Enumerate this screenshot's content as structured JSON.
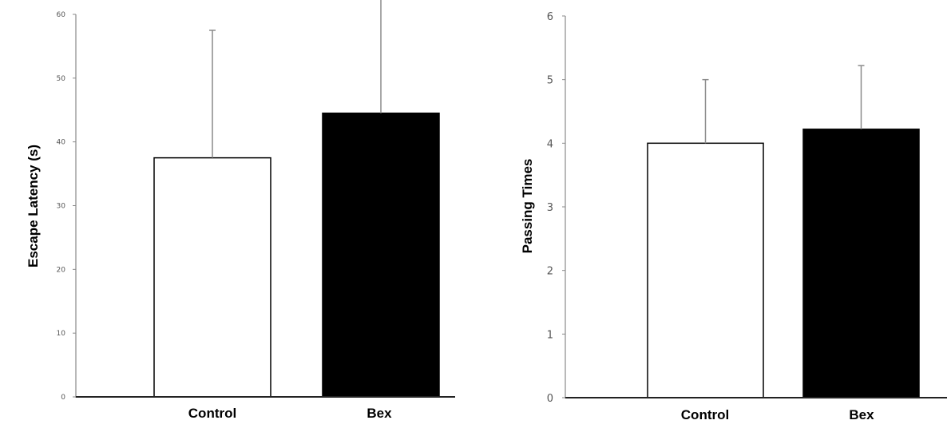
{
  "chart_data": [
    {
      "type": "bar",
      "categories": [
        "Control",
        "Bex"
      ],
      "values": [
        37.5,
        44.5
      ],
      "errors": [
        20,
        20
      ],
      "ylabel": "Escape Latency (s)",
      "ylim": [
        0,
        60
      ],
      "yticks": [
        0,
        10,
        20,
        30,
        40,
        50,
        60
      ],
      "bar_colors": [
        "#ffffff",
        "#000000"
      ],
      "grid": false
    },
    {
      "type": "bar",
      "categories": [
        "Control",
        "Bex"
      ],
      "values": [
        4.0,
        4.22
      ],
      "errors": [
        1.0,
        1.0
      ],
      "ylabel": "Passing Times",
      "ylim": [
        0,
        6
      ],
      "yticks": [
        0,
        1,
        2,
        3,
        4,
        5,
        6
      ],
      "bar_colors": [
        "#ffffff",
        "#000000"
      ],
      "grid": false
    }
  ]
}
